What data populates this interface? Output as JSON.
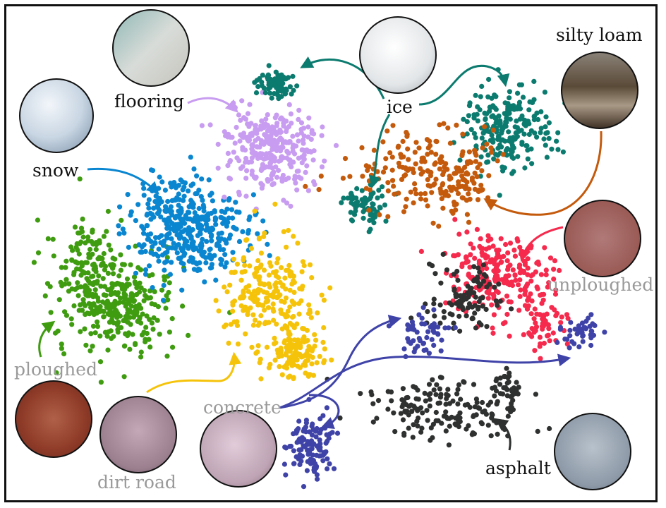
{
  "chart_data": {
    "type": "scatter",
    "title": "",
    "xlabel": "",
    "ylabel": "",
    "grid": false,
    "legend": "none",
    "series": [
      {
        "name": "snow",
        "color": "#0a86d0"
      },
      {
        "name": "flooring",
        "color": "#c89cf0"
      },
      {
        "name": "ice",
        "color": "#0c7b6f"
      },
      {
        "name": "silty loam",
        "color": "#c45a0c"
      },
      {
        "name": "unploughed",
        "color": "#f52a4d"
      },
      {
        "name": "ploughed",
        "color": "#3f9c10"
      },
      {
        "name": "dirt road",
        "color": "#f5c30a"
      },
      {
        "name": "concrete",
        "color": "#3f43a8"
      },
      {
        "name": "asphalt",
        "color": "#2f3030"
      }
    ],
    "annotations": {
      "snow": "snow",
      "flooring": "flooring",
      "ice": "ice",
      "silty_loam": "silty loam",
      "unploughed": "unploughed",
      "ploughed": "ploughed",
      "dirt_road": "dirt road",
      "concrete": "concrete",
      "asphalt": "asphalt"
    }
  },
  "colors": {
    "label_dark": "#111111",
    "label_gray": "#9a9a9a"
  }
}
